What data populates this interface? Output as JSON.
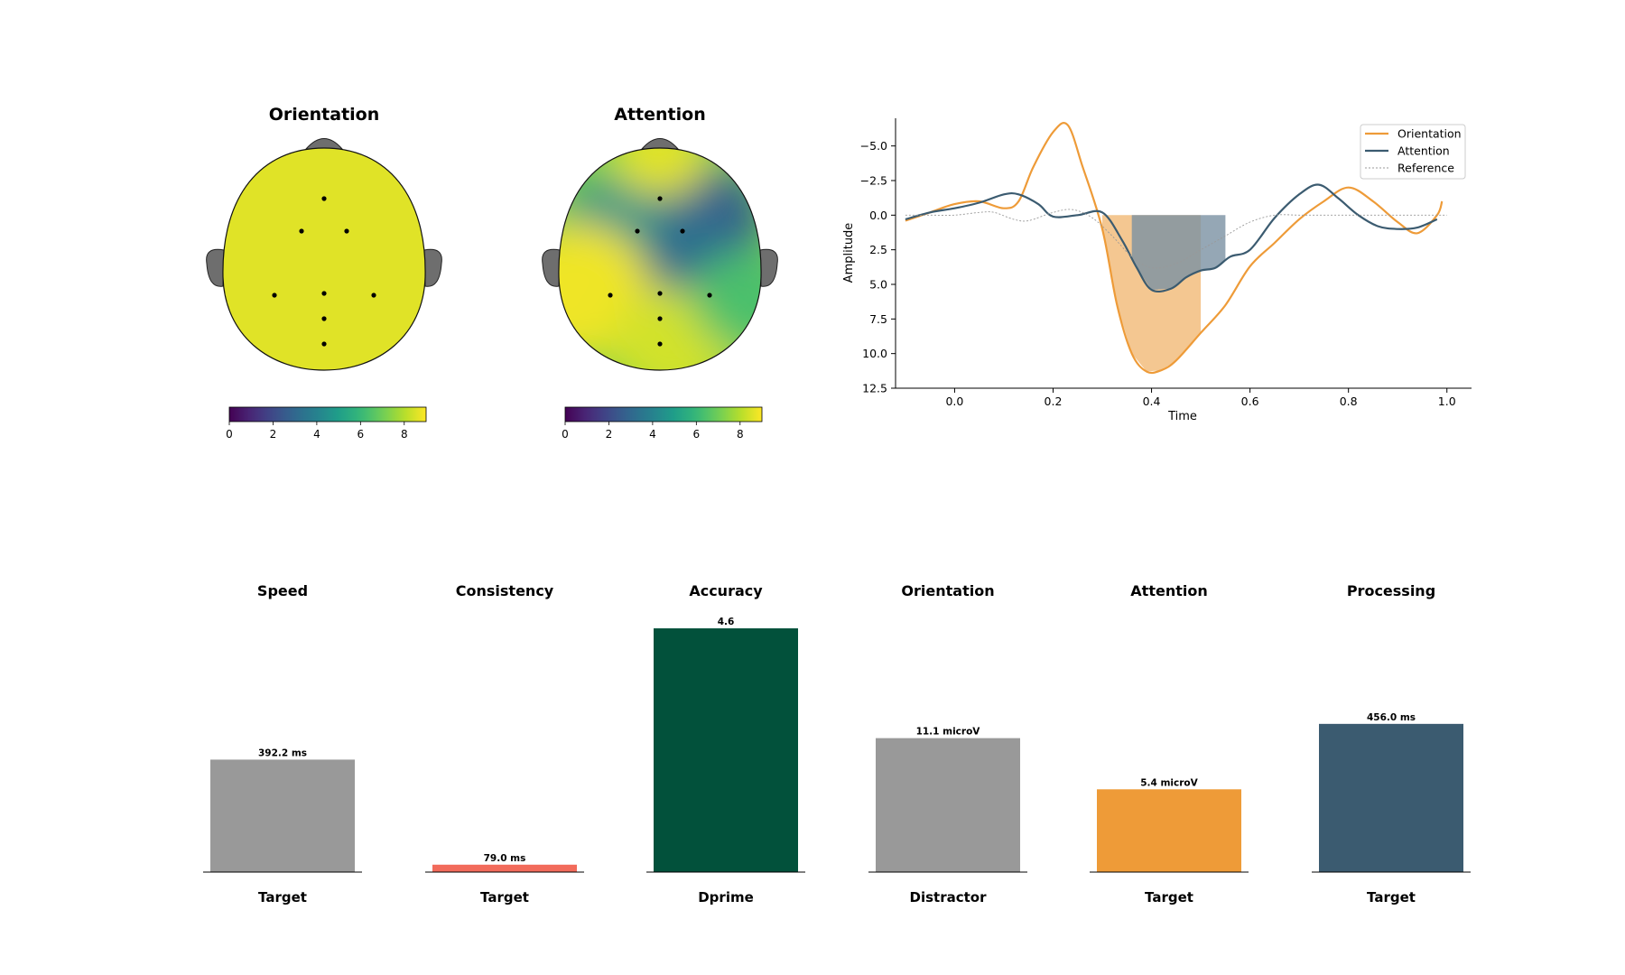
{
  "topomaps": [
    {
      "title": "Orientation",
      "colorbar_ticks": [
        "0",
        "2",
        "4",
        "6",
        "8"
      ],
      "value_range": [
        0,
        9
      ],
      "uniform_value": 8.6,
      "hotspots": []
    },
    {
      "title": "Attention",
      "colorbar_ticks": [
        "0",
        "2",
        "4",
        "6",
        "8"
      ],
      "value_range": [
        0,
        9
      ],
      "uniform_value": null,
      "hotspots": [
        {
          "region": "right-frontal",
          "value": 2.8
        },
        {
          "region": "center",
          "value": 3.2
        },
        {
          "region": "left-frontal",
          "value": 4.6
        },
        {
          "region": "frontal-pole",
          "value": 8.6
        },
        {
          "region": "left-temporal",
          "value": 8.8
        },
        {
          "region": "occipital",
          "value": 8.4
        },
        {
          "region": "right-temporal",
          "value": 6.4
        }
      ]
    }
  ],
  "chart_data": [
    {
      "type": "line",
      "title": "",
      "xlabel": "Time",
      "ylabel": "Amplitude",
      "xlim": [
        -0.12,
        1.05
      ],
      "ylim": [
        12.5,
        -7.0
      ],
      "y_inverted": true,
      "xticks": [
        "0.0",
        "0.2",
        "0.4",
        "0.6",
        "0.8",
        "1.0"
      ],
      "yticks": [
        "−5.0",
        "−2.5",
        "0.0",
        "2.5",
        "5.0",
        "7.5",
        "10.0",
        "12.5"
      ],
      "ytick_values": [
        -5.0,
        -2.5,
        0.0,
        2.5,
        5.0,
        7.5,
        10.0,
        12.5
      ],
      "xtick_values": [
        0.0,
        0.2,
        0.4,
        0.6,
        0.8,
        1.0
      ],
      "legend": [
        "Orientation",
        "Attention",
        "Reference"
      ],
      "legend_position": "top-right",
      "series": [
        {
          "name": "Orientation",
          "color": "#EE9B38",
          "x": [
            -0.1,
            -0.05,
            0.0,
            0.05,
            0.1,
            0.13,
            0.16,
            0.2,
            0.23,
            0.26,
            0.3,
            0.33,
            0.36,
            0.39,
            0.42,
            0.45,
            0.5,
            0.55,
            0.6,
            0.65,
            0.7,
            0.75,
            0.8,
            0.85,
            0.9,
            0.94,
            0.98,
            0.99
          ],
          "y": [
            0.4,
            -0.2,
            -0.8,
            -1.0,
            -0.5,
            -1.0,
            -3.5,
            -6.0,
            -6.5,
            -3.5,
            1.0,
            6.5,
            10.0,
            11.3,
            11.2,
            10.5,
            8.5,
            6.5,
            3.7,
            2.0,
            0.3,
            -1.0,
            -2.0,
            -1.0,
            0.5,
            1.3,
            0.0,
            -1.0
          ]
        },
        {
          "name": "Attention",
          "color": "#3B5B70",
          "x": [
            -0.1,
            -0.05,
            0.0,
            0.05,
            0.1,
            0.13,
            0.17,
            0.2,
            0.25,
            0.3,
            0.34,
            0.37,
            0.4,
            0.44,
            0.47,
            0.5,
            0.53,
            0.56,
            0.6,
            0.65,
            0.7,
            0.74,
            0.78,
            0.82,
            0.86,
            0.9,
            0.94,
            0.98
          ],
          "y": [
            0.3,
            -0.2,
            -0.5,
            -0.9,
            -1.5,
            -1.5,
            -0.8,
            0.1,
            0.0,
            -0.2,
            1.8,
            3.8,
            5.4,
            5.3,
            4.5,
            4.0,
            3.8,
            3.0,
            2.5,
            0.2,
            -1.5,
            -2.2,
            -1.2,
            0.0,
            0.8,
            1.0,
            0.9,
            0.3
          ]
        },
        {
          "name": "Reference",
          "color": "#999999",
          "dashed": true,
          "x": [
            -0.1,
            -0.05,
            0.0,
            0.05,
            0.08,
            0.12,
            0.15,
            0.2,
            0.24,
            0.28,
            0.32,
            0.36,
            0.4,
            0.45,
            0.5,
            0.55,
            0.6,
            0.65,
            0.7,
            0.75,
            0.8,
            0.9,
            1.0
          ],
          "y": [
            0.0,
            0.0,
            0.0,
            -0.2,
            -0.2,
            0.3,
            0.4,
            -0.2,
            -0.4,
            0.2,
            1.5,
            3.0,
            3.8,
            3.5,
            2.5,
            1.5,
            0.5,
            0.0,
            0.0,
            0.0,
            0.0,
            0.0,
            0.0
          ]
        }
      ],
      "shaded_regions": [
        {
          "series": "Orientation",
          "x_start": 0.3,
          "x_end": 0.5,
          "color": "#F2BD7E"
        },
        {
          "series": "Attention",
          "x_start": 0.36,
          "x_end": 0.55,
          "color": "#7B91A2"
        }
      ]
    },
    {
      "type": "bar",
      "title": "Speed",
      "category": "Target",
      "value": 392.2,
      "label": "392.2 ms",
      "color": "#999999",
      "ylim": [
        0,
        850
      ]
    },
    {
      "type": "bar",
      "title": "Consistency",
      "category": "Target",
      "value": 79.0,
      "label": "79.0 ms",
      "color": "#F26B5B",
      "ylim": [
        0,
        2600
      ]
    },
    {
      "type": "bar",
      "title": "Accuracy",
      "category": "Dprime",
      "value": 4.6,
      "label": "4.6",
      "color": "#02513B",
      "ylim": [
        0,
        4.6
      ]
    },
    {
      "type": "bar",
      "title": "Orientation",
      "category": "Distractor",
      "value": 11.1,
      "label": "11.1 microV",
      "color": "#999999",
      "ylim": [
        0,
        20.2
      ]
    },
    {
      "type": "bar",
      "title": "Attention",
      "category": "Target",
      "value": 5.4,
      "label": "5.4 microV",
      "color": "#EE9B38",
      "ylim": [
        0,
        15.9
      ]
    },
    {
      "type": "bar",
      "title": "Processing",
      "category": "Target",
      "value": 456.0,
      "label": "456.0 ms",
      "color": "#3B5B70",
      "ylim": [
        0,
        750
      ]
    }
  ]
}
